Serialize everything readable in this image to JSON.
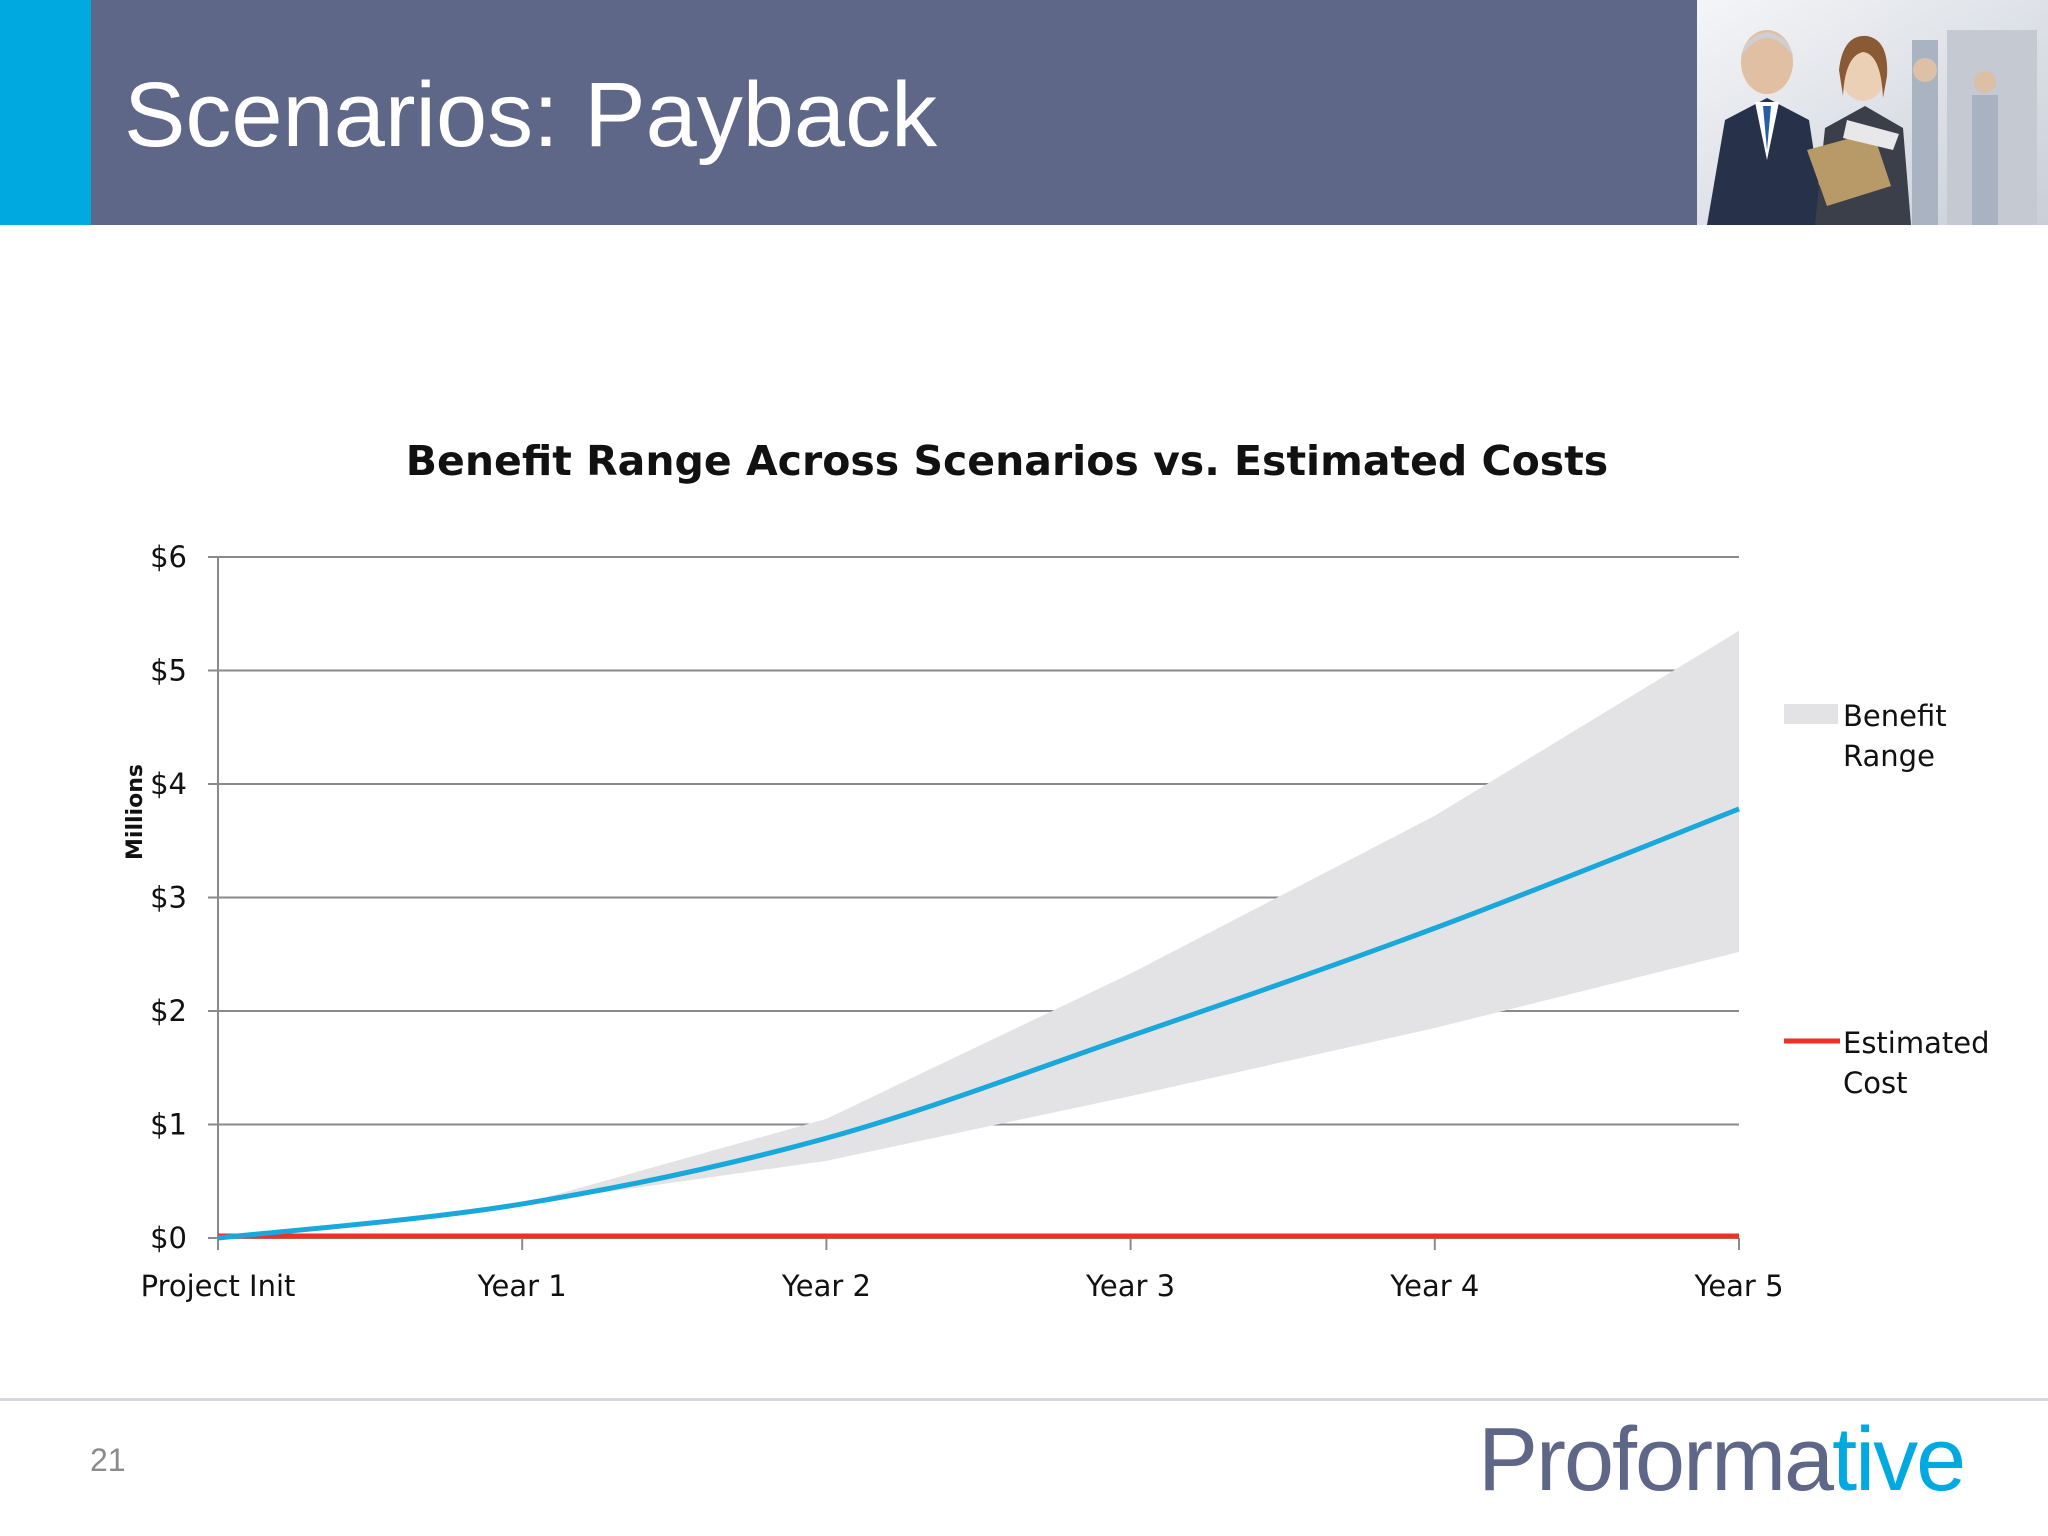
{
  "slide": {
    "title": "Scenarios: Payback",
    "page_number": "21",
    "logo_main": "Proforma",
    "logo_accent": "tive"
  },
  "colors": {
    "header": "#5f6789",
    "accent": "#00a9e0",
    "benefit_range": "#e3e3e6",
    "expected_benefit": "#19a8dc",
    "estimated_cost": "#ee3124"
  },
  "chart_data": {
    "type": "area",
    "title": "Benefit Range Across Scenarios vs. Estimated Costs",
    "ylabel": "Millions",
    "xlabel": "",
    "categories": [
      "Project Init",
      "Year 1",
      "Year 2",
      "Year 3",
      "Year 4",
      "Year 5"
    ],
    "y_ticks": [
      "$0",
      "$1",
      "$2",
      "$3",
      "$4",
      "$5",
      "$6"
    ],
    "ylim": [
      0,
      6
    ],
    "grid": true,
    "legend_position": "right",
    "series": [
      {
        "name": "Benefit Range",
        "kind": "band",
        "low": [
          0,
          0.3,
          0.68,
          1.25,
          1.85,
          2.52
        ],
        "high": [
          0,
          0.3,
          1.05,
          2.33,
          3.72,
          5.35
        ]
      },
      {
        "kind": "line",
        "values": [
          0,
          0.3,
          0.88,
          1.78,
          2.73,
          3.78
        ]
      },
      {
        "name": "Estimated Cost",
        "kind": "line",
        "values": [
          0,
          0,
          0,
          0,
          0,
          0
        ]
      }
    ],
    "legend": [
      {
        "label_lines": [
          "Benefit",
          "Range"
        ]
      },
      {
        "label_lines": [
          "Estimated",
          "Cost"
        ]
      }
    ]
  }
}
